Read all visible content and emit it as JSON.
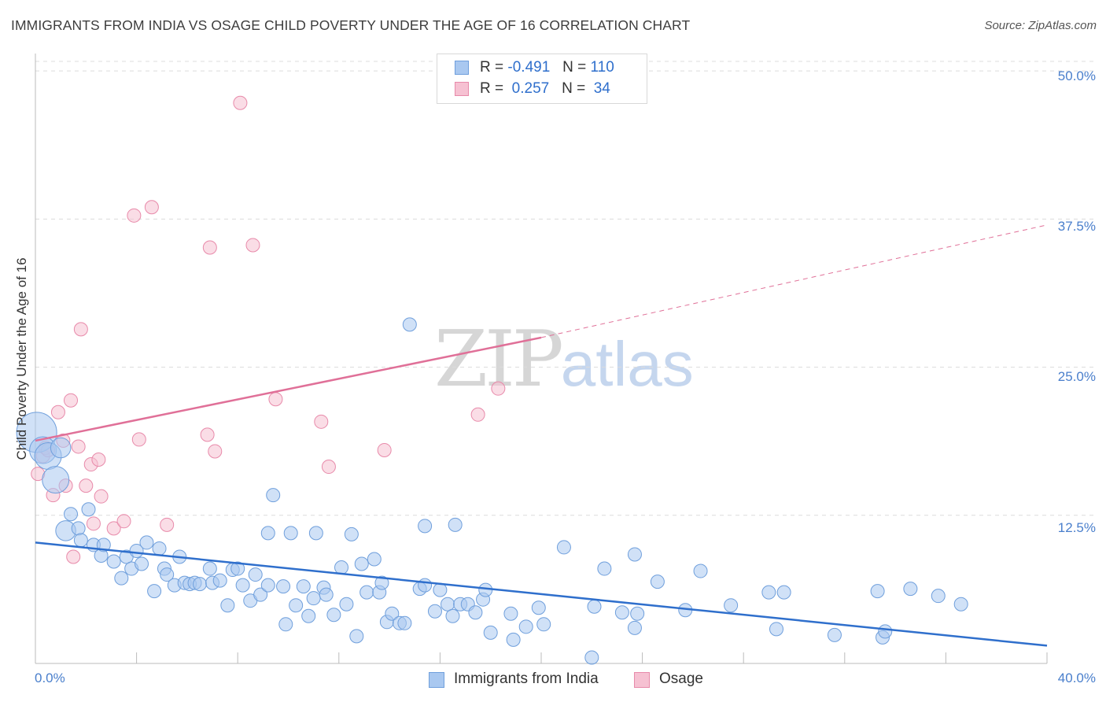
{
  "title": "IMMIGRANTS FROM INDIA VS OSAGE CHILD POVERTY UNDER THE AGE OF 16 CORRELATION CHART",
  "source": "Source: ZipAtlas.com",
  "watermark": {
    "zip": "ZIP",
    "atlas": "atlas"
  },
  "legend": {
    "r_label": "R =",
    "n_label": "N =",
    "series": [
      {
        "r": "-0.491",
        "n": "110"
      },
      {
        "r": "0.257",
        "n": "34"
      }
    ]
  },
  "colors": {
    "india_fill": "#a9c8f0",
    "india_stroke": "#6f9fdc",
    "india_line": "#2f6fcc",
    "osage_fill": "#f6c1d2",
    "osage_stroke": "#e88aaa",
    "osage_line": "#e07098",
    "tick_text": "#4a7fcc",
    "grid": "#dcdcdc"
  },
  "chart_data": {
    "type": "scatter",
    "title": "IMMIGRANTS FROM INDIA VS OSAGE CHILD POVERTY UNDER THE AGE OF 16 CORRELATION CHART",
    "xlabel": "",
    "ylabel": "Child Poverty Under the Age of 16",
    "xlim": [
      0,
      40
    ],
    "ylim": [
      0,
      52
    ],
    "x_tick_labels": [
      "0.0%",
      "40.0%"
    ],
    "y_ticks": [
      12.5,
      25.0,
      37.5,
      50.0
    ],
    "y_tick_labels": [
      "12.5%",
      "25.0%",
      "37.5%",
      "50.0%"
    ],
    "grid": "horizontal dashed",
    "legend_position": "bottom",
    "series": [
      {
        "name": "Immigrants from India",
        "r": -0.491,
        "n": 110,
        "trend": {
          "x": [
            0,
            40
          ],
          "y": [
            10.2,
            1.5
          ],
          "style": "solid"
        },
        "points": [
          {
            "x": 0.05,
            "y": 19.5,
            "s": 3
          },
          {
            "x": 0.3,
            "y": 18.0,
            "s": 2
          },
          {
            "x": 0.5,
            "y": 17.5,
            "s": 2
          },
          {
            "x": 0.8,
            "y": 15.5,
            "s": 2
          },
          {
            "x": 1.0,
            "y": 18.2,
            "s": 1.5
          },
          {
            "x": 1.2,
            "y": 11.2,
            "s": 1.5
          },
          {
            "x": 1.4,
            "y": 12.6
          },
          {
            "x": 1.7,
            "y": 11.4
          },
          {
            "x": 1.8,
            "y": 10.4
          },
          {
            "x": 2.1,
            "y": 13.0
          },
          {
            "x": 2.3,
            "y": 10.0
          },
          {
            "x": 2.6,
            "y": 9.1
          },
          {
            "x": 2.7,
            "y": 10.0
          },
          {
            "x": 3.1,
            "y": 8.6
          },
          {
            "x": 3.4,
            "y": 7.2
          },
          {
            "x": 3.6,
            "y": 9.0
          },
          {
            "x": 3.8,
            "y": 8.0
          },
          {
            "x": 4.0,
            "y": 9.5
          },
          {
            "x": 4.2,
            "y": 8.4
          },
          {
            "x": 4.4,
            "y": 10.2
          },
          {
            "x": 4.7,
            "y": 6.1
          },
          {
            "x": 4.9,
            "y": 9.7
          },
          {
            "x": 5.1,
            "y": 8.0
          },
          {
            "x": 5.2,
            "y": 7.5
          },
          {
            "x": 5.5,
            "y": 6.6
          },
          {
            "x": 5.7,
            "y": 9.0
          },
          {
            "x": 5.9,
            "y": 6.8
          },
          {
            "x": 6.1,
            "y": 6.7
          },
          {
            "x": 6.3,
            "y": 6.8
          },
          {
            "x": 6.5,
            "y": 6.7
          },
          {
            "x": 6.9,
            "y": 8.0
          },
          {
            "x": 7.0,
            "y": 6.8
          },
          {
            "x": 7.3,
            "y": 7.0
          },
          {
            "x": 7.6,
            "y": 4.9
          },
          {
            "x": 7.8,
            "y": 7.9
          },
          {
            "x": 8.0,
            "y": 8.0
          },
          {
            "x": 8.2,
            "y": 6.6
          },
          {
            "x": 8.5,
            "y": 5.3
          },
          {
            "x": 8.7,
            "y": 7.5
          },
          {
            "x": 8.9,
            "y": 5.8
          },
          {
            "x": 9.2,
            "y": 6.6
          },
          {
            "x": 9.2,
            "y": 11.0
          },
          {
            "x": 9.4,
            "y": 14.2
          },
          {
            "x": 9.8,
            "y": 6.5
          },
          {
            "x": 9.9,
            "y": 3.3
          },
          {
            "x": 10.1,
            "y": 11.0
          },
          {
            "x": 10.3,
            "y": 4.9
          },
          {
            "x": 10.6,
            "y": 6.5
          },
          {
            "x": 10.8,
            "y": 4.0
          },
          {
            "x": 11.0,
            "y": 5.5
          },
          {
            "x": 11.1,
            "y": 11.0
          },
          {
            "x": 11.4,
            "y": 6.4
          },
          {
            "x": 11.5,
            "y": 5.8
          },
          {
            "x": 11.8,
            "y": 4.1
          },
          {
            "x": 12.1,
            "y": 8.1
          },
          {
            "x": 12.3,
            "y": 5.0
          },
          {
            "x": 12.5,
            "y": 10.9
          },
          {
            "x": 12.7,
            "y": 2.3
          },
          {
            "x": 12.9,
            "y": 8.4
          },
          {
            "x": 13.1,
            "y": 6.0
          },
          {
            "x": 13.4,
            "y": 8.8
          },
          {
            "x": 13.6,
            "y": 6.0
          },
          {
            "x": 13.7,
            "y": 6.8
          },
          {
            "x": 13.9,
            "y": 3.5
          },
          {
            "x": 14.1,
            "y": 4.2
          },
          {
            "x": 14.4,
            "y": 3.4
          },
          {
            "x": 14.6,
            "y": 3.4
          },
          {
            "x": 14.8,
            "y": 28.6
          },
          {
            "x": 15.2,
            "y": 6.3
          },
          {
            "x": 15.4,
            "y": 6.6
          },
          {
            "x": 15.4,
            "y": 11.6
          },
          {
            "x": 15.8,
            "y": 4.4
          },
          {
            "x": 16.0,
            "y": 6.2
          },
          {
            "x": 16.3,
            "y": 5.0
          },
          {
            "x": 16.5,
            "y": 4.0
          },
          {
            "x": 16.6,
            "y": 11.7
          },
          {
            "x": 16.8,
            "y": 5.0
          },
          {
            "x": 17.1,
            "y": 5.0
          },
          {
            "x": 17.4,
            "y": 4.3
          },
          {
            "x": 17.7,
            "y": 5.4
          },
          {
            "x": 17.8,
            "y": 6.2
          },
          {
            "x": 18.0,
            "y": 2.6
          },
          {
            "x": 18.8,
            "y": 4.2
          },
          {
            "x": 18.9,
            "y": 2.0
          },
          {
            "x": 19.4,
            "y": 3.1
          },
          {
            "x": 19.9,
            "y": 4.7
          },
          {
            "x": 20.1,
            "y": 3.3
          },
          {
            "x": 20.9,
            "y": 9.8
          },
          {
            "x": 22.0,
            "y": 0.5
          },
          {
            "x": 22.1,
            "y": 4.8
          },
          {
            "x": 22.5,
            "y": 8.0
          },
          {
            "x": 23.2,
            "y": 4.3
          },
          {
            "x": 23.7,
            "y": 9.2
          },
          {
            "x": 23.7,
            "y": 3.0
          },
          {
            "x": 23.8,
            "y": 4.2
          },
          {
            "x": 24.6,
            "y": 6.9
          },
          {
            "x": 25.7,
            "y": 4.5
          },
          {
            "x": 26.3,
            "y": 7.8
          },
          {
            "x": 27.5,
            "y": 4.9
          },
          {
            "x": 29.0,
            "y": 6.0
          },
          {
            "x": 29.3,
            "y": 2.9
          },
          {
            "x": 29.6,
            "y": 6.0
          },
          {
            "x": 31.6,
            "y": 2.4
          },
          {
            "x": 33.3,
            "y": 6.1
          },
          {
            "x": 33.5,
            "y": 2.2
          },
          {
            "x": 33.6,
            "y": 2.7
          },
          {
            "x": 34.6,
            "y": 6.3
          },
          {
            "x": 35.7,
            "y": 5.7
          },
          {
            "x": 36.6,
            "y": 5.0
          }
        ]
      },
      {
        "name": "Osage",
        "r": 0.257,
        "n": 34,
        "trend": {
          "x": [
            0,
            20,
            40
          ],
          "y": [
            18.8,
            27.5,
            37.0
          ],
          "style": "solid to x=20, dashed beyond"
        },
        "points": [
          {
            "x": 0.1,
            "y": 16.0
          },
          {
            "x": 0.3,
            "y": 17.5
          },
          {
            "x": 0.4,
            "y": 18.2
          },
          {
            "x": 0.5,
            "y": 18.0
          },
          {
            "x": 0.7,
            "y": 14.2
          },
          {
            "x": 0.9,
            "y": 21.2
          },
          {
            "x": 1.1,
            "y": 18.8
          },
          {
            "x": 1.2,
            "y": 15.0
          },
          {
            "x": 1.4,
            "y": 22.2
          },
          {
            "x": 1.5,
            "y": 9.0
          },
          {
            "x": 1.7,
            "y": 18.3
          },
          {
            "x": 1.8,
            "y": 28.2
          },
          {
            "x": 2.0,
            "y": 15.0
          },
          {
            "x": 2.2,
            "y": 16.8
          },
          {
            "x": 2.3,
            "y": 11.8
          },
          {
            "x": 2.5,
            "y": 17.2
          },
          {
            "x": 2.6,
            "y": 14.1
          },
          {
            "x": 3.1,
            "y": 11.4
          },
          {
            "x": 3.5,
            "y": 12.0
          },
          {
            "x": 3.9,
            "y": 37.8
          },
          {
            "x": 4.1,
            "y": 18.9
          },
          {
            "x": 4.6,
            "y": 38.5
          },
          {
            "x": 5.2,
            "y": 11.7
          },
          {
            "x": 6.8,
            "y": 19.3
          },
          {
            "x": 6.9,
            "y": 35.1
          },
          {
            "x": 7.1,
            "y": 17.9
          },
          {
            "x": 8.1,
            "y": 47.3
          },
          {
            "x": 8.6,
            "y": 35.3
          },
          {
            "x": 9.5,
            "y": 22.3
          },
          {
            "x": 11.3,
            "y": 20.4
          },
          {
            "x": 11.6,
            "y": 16.6
          },
          {
            "x": 13.8,
            "y": 18.0
          },
          {
            "x": 17.5,
            "y": 21.0
          },
          {
            "x": 18.3,
            "y": 23.2
          }
        ]
      }
    ]
  }
}
